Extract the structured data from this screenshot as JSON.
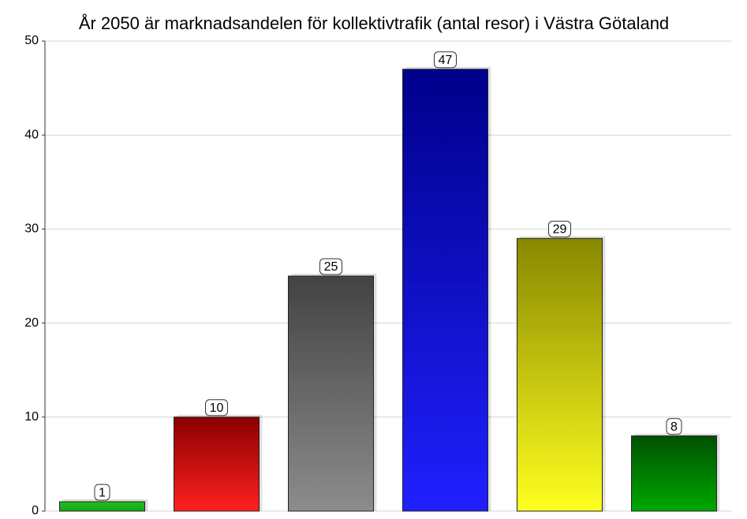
{
  "chart_data": {
    "type": "bar",
    "title": "År 2050 är marknadsandelen för kollektivtrafik (antal resor) i Västra Götaland",
    "categories": [
      null,
      null,
      null,
      null,
      null,
      null
    ],
    "values": [
      1,
      10,
      25,
      47,
      29,
      8
    ],
    "gradients": [
      [
        "#1fc01f",
        "#14a814"
      ],
      [
        "#8b0000",
        "#ff2020"
      ],
      [
        "#434343",
        "#8c8c8c"
      ],
      [
        "#00008b",
        "#2020ff"
      ],
      [
        "#888800",
        "#ffff20"
      ],
      [
        "#005000",
        "#00a800"
      ]
    ],
    "ylim": [
      0,
      50
    ],
    "yticks": [
      0,
      10,
      20,
      30,
      40,
      50
    ],
    "grid": true
  }
}
